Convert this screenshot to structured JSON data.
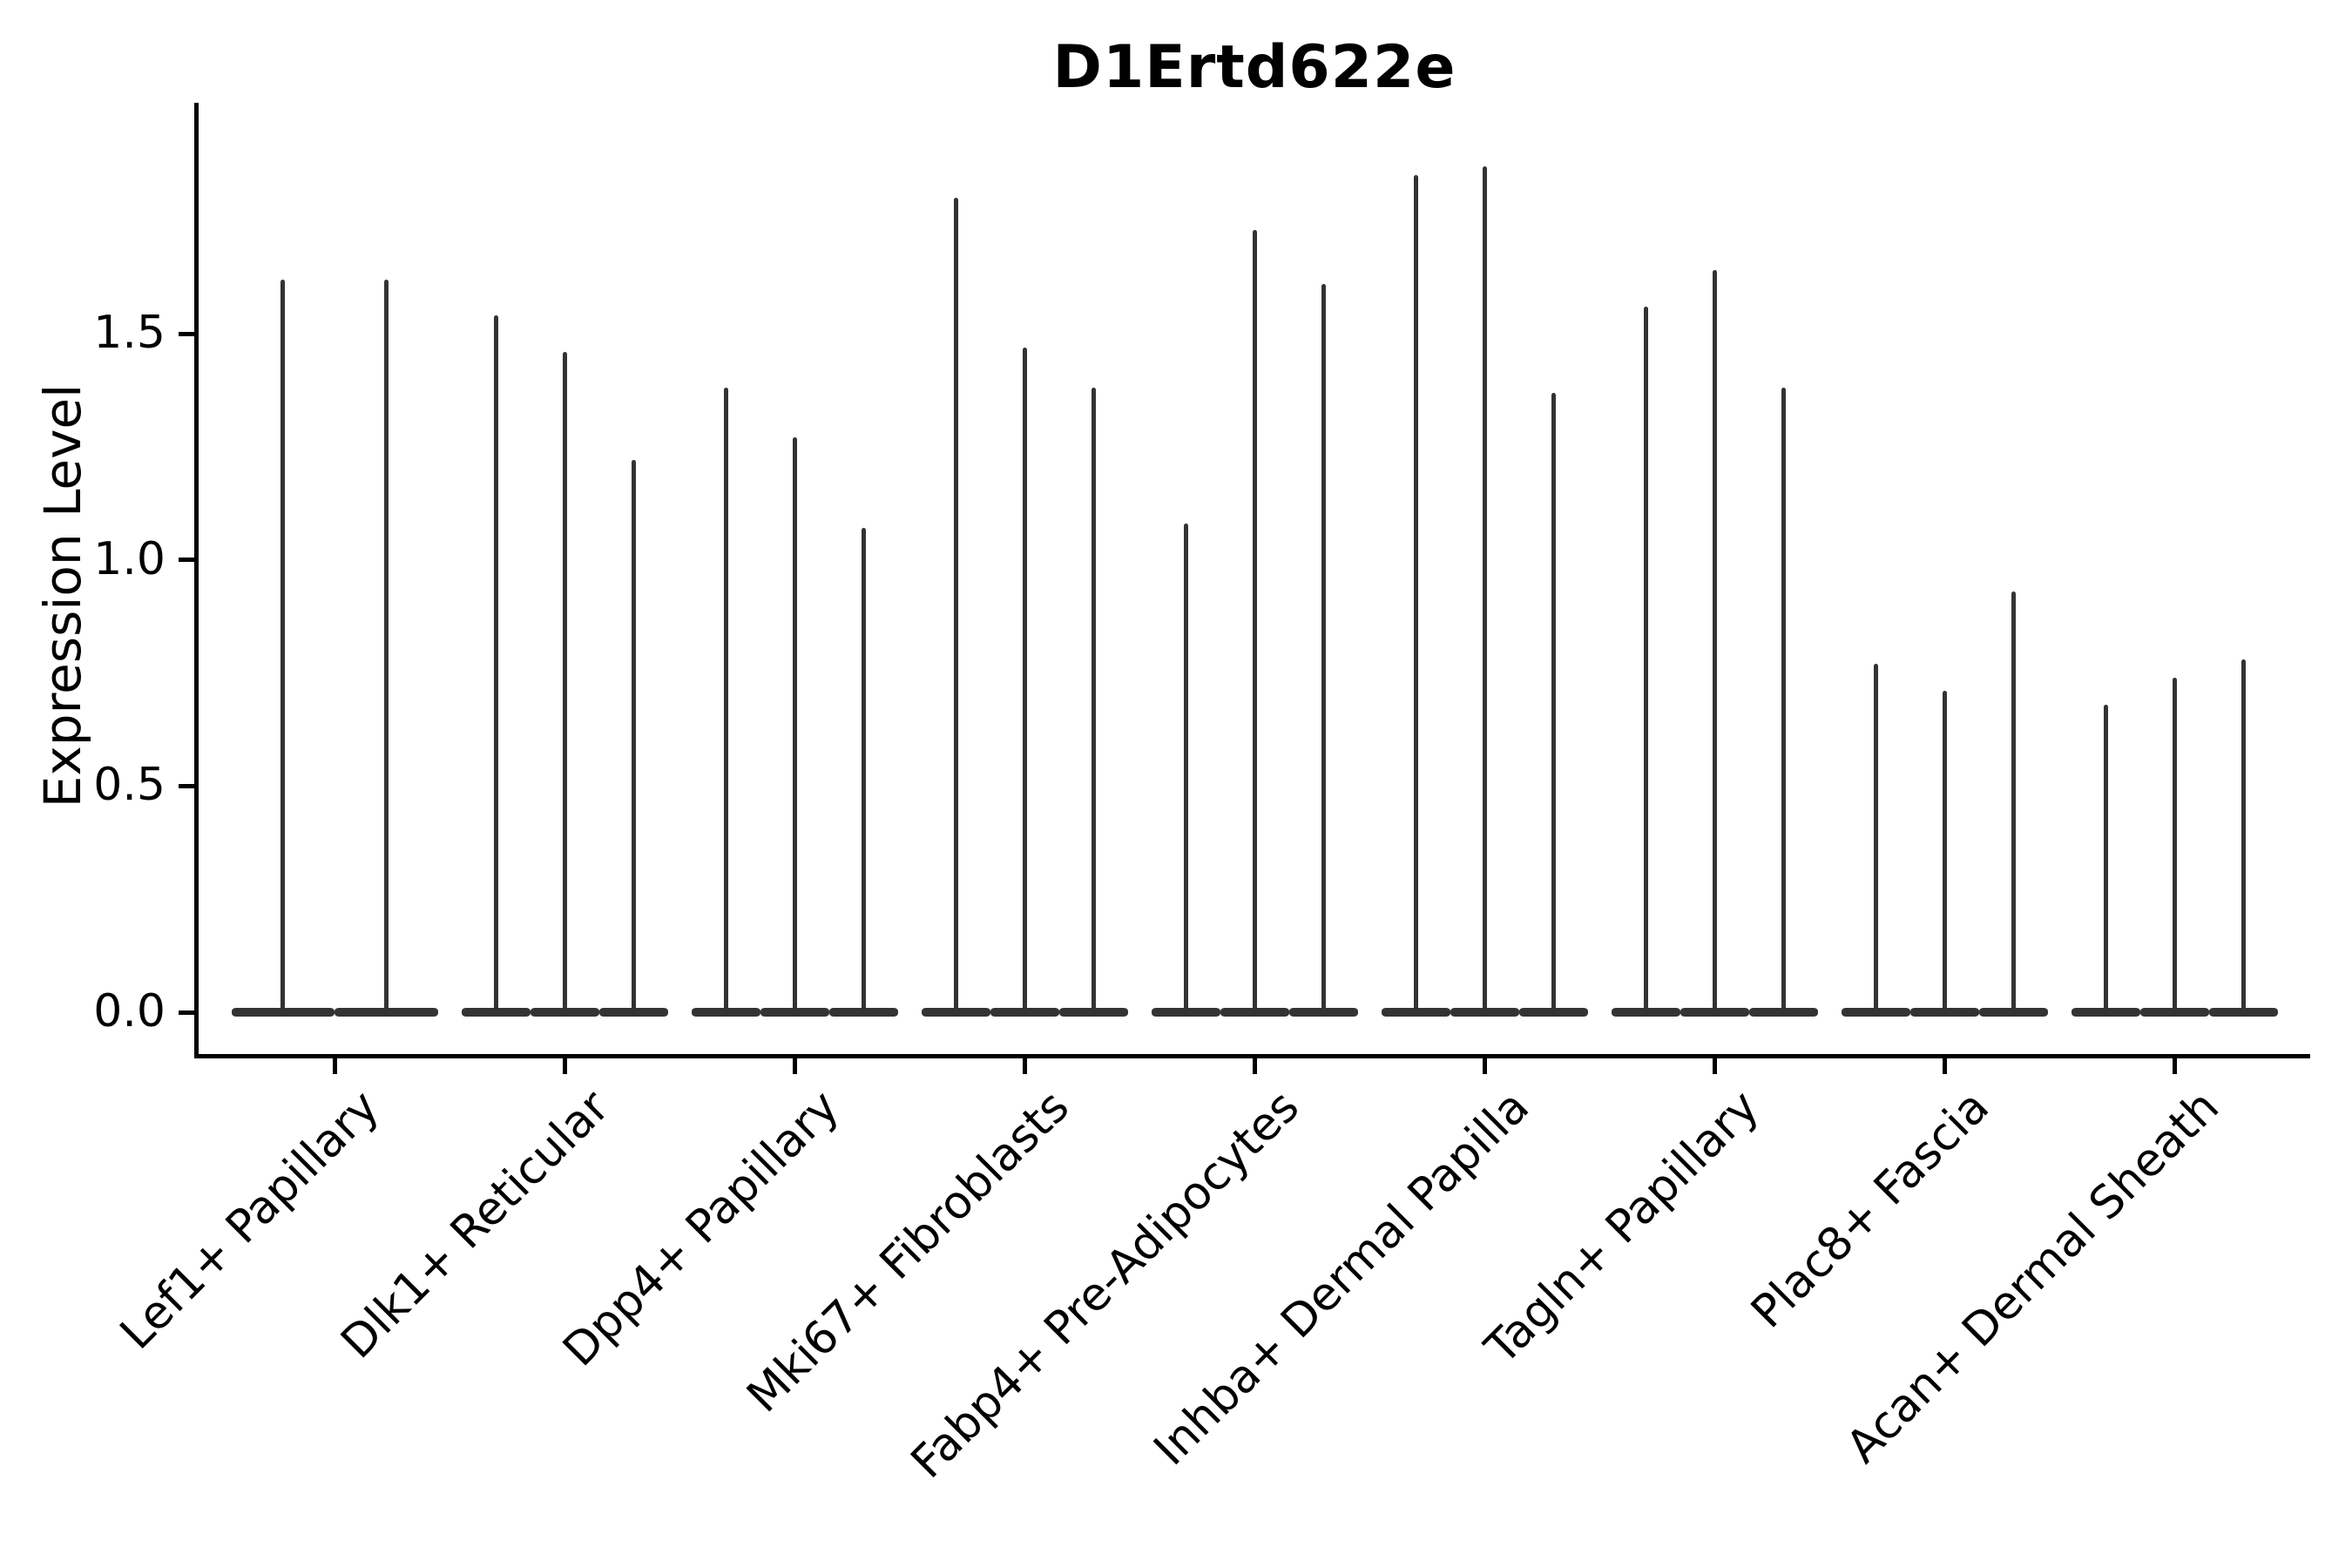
{
  "title": "D1Ertd622e",
  "y_axis": {
    "label": "Expression Level",
    "tick_labels": [
      "0.0",
      "0.5",
      "1.0",
      "1.5"
    ]
  },
  "chart_data": {
    "type": "violin",
    "title": "D1Ertd622e",
    "xlabel": "",
    "ylabel": "Expression Level",
    "yticks": [
      0.0,
      0.5,
      1.0,
      1.5
    ],
    "ylim": [
      -0.09,
      2.0
    ],
    "grid": false,
    "legend": "none",
    "x_tick_rotation": 45,
    "description": "Each violin is a flat density mass at 0 expression with a very thin spike rising to the maximum expression value",
    "categories": [
      "Lef1+ Papillary",
      "Dlk1+ Reticular",
      "Dpp4+ Papillary",
      "Mki67+ Fibroblasts",
      "Fabp4+ Pre-Adipocytes",
      "Inhba+ Dermal Papilla",
      "Tagln+ Papillary",
      "Plac8+ Fascia",
      "Acan+ Dermal Sheath"
    ],
    "groups": [
      {
        "category": "Lef1+ Papillary",
        "violin_maxima": [
          1.62,
          1.62
        ],
        "baseline_mass_at_zero": true
      },
      {
        "category": "Dlk1+ Reticular",
        "violin_maxima": [
          1.54,
          1.46,
          1.22
        ],
        "baseline_mass_at_zero": true
      },
      {
        "category": "Dpp4+ Papillary",
        "violin_maxima": [
          1.38,
          1.27,
          1.07
        ],
        "baseline_mass_at_zero": true
      },
      {
        "category": "Mki67+ Fibroblasts",
        "violin_maxima": [
          1.8,
          1.47,
          1.38
        ],
        "baseline_mass_at_zero": true
      },
      {
        "category": "Fabp4+ Pre-Adipocytes",
        "violin_maxima": [
          1.08,
          1.73,
          1.61
        ],
        "baseline_mass_at_zero": true
      },
      {
        "category": "Inhba+ Dermal Papilla",
        "violin_maxima": [
          1.85,
          1.87,
          1.37
        ],
        "baseline_mass_at_zero": true
      },
      {
        "category": "Tagln+ Papillary",
        "violin_maxima": [
          1.56,
          1.64,
          1.38
        ],
        "baseline_mass_at_zero": true
      },
      {
        "category": "Plac8+ Fascia",
        "violin_maxima": [
          0.77,
          0.71,
          0.93
        ],
        "baseline_mass_at_zero": true
      },
      {
        "category": "Acan+ Dermal Sheath",
        "violin_maxima": [
          0.68,
          0.74,
          0.78
        ],
        "baseline_mass_at_zero": true
      }
    ]
  },
  "colors": {
    "background": "#ffffff",
    "violin": "#333333",
    "axis": "#000000",
    "text": "#000000"
  }
}
